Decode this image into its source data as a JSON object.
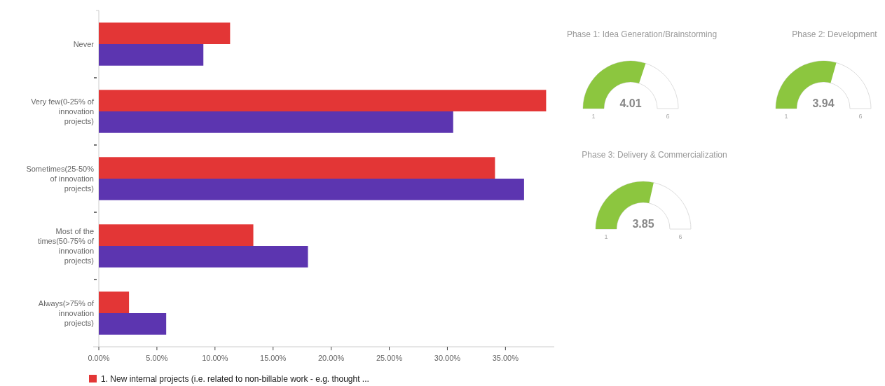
{
  "chart_data": [
    {
      "type": "bar",
      "orientation": "horizontal",
      "categories": [
        "Never",
        "Very few(0-25% of innovation projects)",
        "Sometimes(25-50% of innovation projects)",
        "Most of the times(50-75% of innovation projects)",
        "Always(>75% of innovation projects)"
      ],
      "series": [
        {
          "name": "1. New internal projects (i.e. related to non-billable work - e.g. thought ...",
          "color": "#e33636",
          "values": [
            11.3,
            38.5,
            34.1,
            13.3,
            2.6
          ]
        },
        {
          "color": "#5c35b0",
          "values": [
            9.0,
            30.5,
            36.6,
            18.0,
            5.8
          ]
        }
      ],
      "xlim": [
        0,
        39.2
      ],
      "xticks": [
        {
          "value": 0,
          "label": "0.00%"
        },
        {
          "value": 5,
          "label": "5.00%"
        },
        {
          "value": 10,
          "label": "10.00%"
        },
        {
          "value": 15,
          "label": "15.00%"
        },
        {
          "value": 20,
          "label": "20.00%"
        },
        {
          "value": 25,
          "label": "25.00%"
        },
        {
          "value": 30,
          "label": "30.00%"
        },
        {
          "value": 35,
          "label": "35.00%"
        }
      ],
      "legend": "bottom left",
      "grid": false
    },
    {
      "type": "other",
      "title": "Phase 1: Idea Generation/Brainstorming",
      "values": [
        4.01
      ],
      "data_labels": true,
      "color": "#8cc63f",
      "annotations": [
        "1",
        "6"
      ]
    },
    {
      "type": "other",
      "title": "Phase 2: Development",
      "values": [
        3.94
      ],
      "data_labels": true,
      "color": "#8cc63f",
      "annotations": [
        "1",
        "6"
      ]
    },
    {
      "type": "other",
      "title": "Phase 3: Delivery & Commercialization",
      "values": [
        3.85
      ],
      "data_labels": true,
      "color": "#8cc63f",
      "annotations": [
        "1",
        "6"
      ]
    }
  ]
}
